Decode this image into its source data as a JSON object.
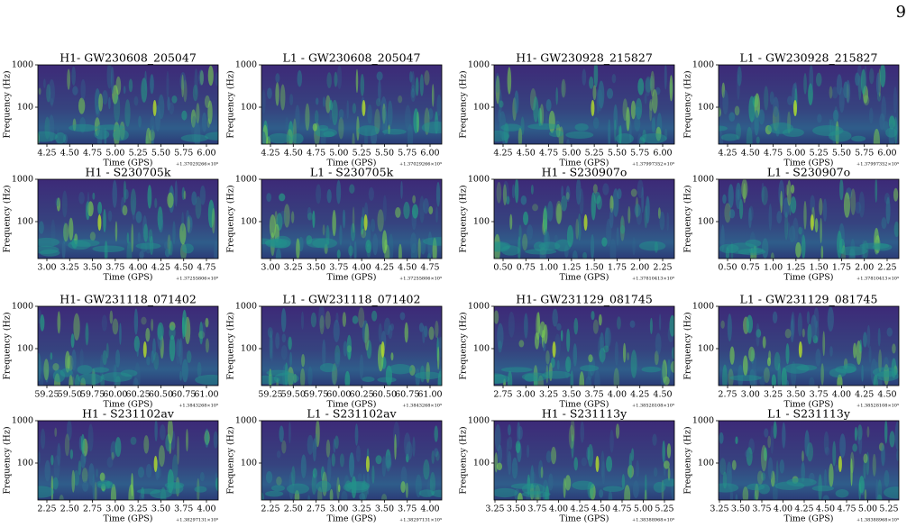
{
  "page_number": "9",
  "panels": [
    {
      "title": "H1- GW230608_205047",
      "ylabel": "Frequency (Hz)",
      "yticks": [
        "1000",
        "100"
      ],
      "xticks": [
        "4.25",
        "4.50",
        "4.75",
        "5.00",
        "5.25",
        "5.50",
        "5.75",
        "6.00"
      ],
      "xlabel": "Time (GPS)",
      "offset": "+1.37029266×10⁹"
    },
    {
      "title": "L1 - GW230608_205047",
      "ylabel": "Frequency (Hz)",
      "yticks": [
        "1000",
        "100"
      ],
      "xticks": [
        "4.25",
        "4.50",
        "4.75",
        "5.00",
        "5.25",
        "5.50",
        "5.75",
        "6.00"
      ],
      "xlabel": "Time (GPS)",
      "offset": "+1.37029266×10⁹"
    },
    {
      "title": "H1- GW230928_215827",
      "ylabel": "Frequency (Hz)",
      "yticks": [
        "1000",
        "100"
      ],
      "xticks": [
        "4.25",
        "4.50",
        "4.75",
        "5.00",
        "5.25",
        "5.50",
        "5.75",
        "6.00"
      ],
      "xlabel": "Time (GPS)",
      "offset": "+1.37997352×10⁹"
    },
    {
      "title": "L1 - GW230928_215827",
      "ylabel": "Frequency (Hz)",
      "yticks": [
        "1000",
        "100"
      ],
      "xticks": [
        "4.25",
        "4.50",
        "4.75",
        "5.00",
        "5.25",
        "5.50",
        "5.75",
        "6.00"
      ],
      "xlabel": "Time (GPS)",
      "offset": "+1.37997352×10⁹"
    },
    {
      "title": "H1 - S230705k",
      "ylabel": "Frequency (Hz)",
      "yticks": [
        "1000",
        "100"
      ],
      "xticks": [
        "3.00",
        "3.25",
        "3.50",
        "3.75",
        "4.00",
        "4.25",
        "4.50",
        "4.75"
      ],
      "xlabel": "Time (GPS)",
      "offset": "+1.37255806×10⁹"
    },
    {
      "title": "L1 - S230705k",
      "ylabel": "Frequency (Hz)",
      "yticks": [
        "1000",
        "100"
      ],
      "xticks": [
        "3.00",
        "3.25",
        "3.50",
        "3.75",
        "4.00",
        "4.25",
        "4.50",
        "4.75"
      ],
      "xlabel": "Time (GPS)",
      "offset": "+1.37255806×10⁹"
    },
    {
      "title": "H1 - S230907o",
      "ylabel": "Frequency (Hz)",
      "yticks": [
        "1000",
        "100"
      ],
      "xticks": [
        "0.50",
        "0.75",
        "1.00",
        "1.25",
        "1.50",
        "1.75",
        "2.00",
        "2.25"
      ],
      "xlabel": "Time (GPS)",
      "offset": "+1.37810413×10⁹"
    },
    {
      "title": "L1 - S230907o",
      "ylabel": "Frequency (Hz)",
      "yticks": [
        "1000",
        "100"
      ],
      "xticks": [
        "0.50",
        "0.75",
        "1.00",
        "1.25",
        "1.50",
        "1.75",
        "2.00",
        "2.25"
      ],
      "xlabel": "Time (GPS)",
      "offset": "+1.37810413×10⁹"
    },
    {
      "title": "H1- GW231118_071402",
      "ylabel": "Frequency (Hz)",
      "yticks": [
        "1000",
        "100"
      ],
      "xticks": [
        "59.25",
        "59.50",
        "59.75",
        "60.00",
        "60.25",
        "60.50",
        "60.75",
        "61.00"
      ],
      "xlabel": "Time (GPS)",
      "offset": "+1.3843268×10⁹"
    },
    {
      "title": "L1 - GW231118_071402",
      "ylabel": "Frequency (Hz)",
      "yticks": [
        "1000",
        "100"
      ],
      "xticks": [
        "59.25",
        "59.50",
        "59.75",
        "60.00",
        "60.25",
        "60.50",
        "60.75",
        "61.00"
      ],
      "xlabel": "Time (GPS)",
      "offset": "+1.3843268×10⁹"
    },
    {
      "title": "H1- GW231129_081745",
      "ylabel": "Frequency (Hz)",
      "yticks": [
        "1000",
        "100"
      ],
      "xticks": [
        "2.75",
        "3.00",
        "3.25",
        "3.50",
        "3.75",
        "4.00",
        "4.25",
        "4.50"
      ],
      "xlabel": "Time (GPS)",
      "offset": "+1.38528108×10⁹"
    },
    {
      "title": "L1 - GW231129_081745",
      "ylabel": "Frequency (Hz)",
      "yticks": [
        "1000",
        "100"
      ],
      "xticks": [
        "2.75",
        "3.00",
        "3.25",
        "3.50",
        "3.75",
        "4.00",
        "4.25",
        "4.50"
      ],
      "xlabel": "Time (GPS)",
      "offset": "+1.38528108×10⁹"
    },
    {
      "title": "H1 - S231102av",
      "ylabel": "Frequency (Hz)",
      "yticks": [
        "1000",
        "100"
      ],
      "xticks": [
        "2.25",
        "2.50",
        "2.75",
        "3.00",
        "3.25",
        "3.50",
        "3.75",
        "4.00"
      ],
      "xlabel": "Time (GPS)",
      "offset": "+1.38297131×10⁹"
    },
    {
      "title": "L1 - S231102av",
      "ylabel": "Frequency (Hz)",
      "yticks": [
        "1000",
        "100"
      ],
      "xticks": [
        "2.25",
        "2.50",
        "2.75",
        "3.00",
        "3.25",
        "3.50",
        "3.75",
        "4.00"
      ],
      "xlabel": "Time (GPS)",
      "offset": "+1.38297131×10⁹"
    },
    {
      "title": "H1 - S231113y",
      "ylabel": "Frequency (Hz)",
      "yticks": [
        "1000",
        "100"
      ],
      "xticks": [
        "3.25",
        "3.50",
        "3.75",
        "4.00",
        "4.25",
        "4.50",
        "4.75",
        "5.00",
        "5.25"
      ],
      "xlabel": "Time (GPS)",
      "offset": "+1.38388968×10⁹"
    },
    {
      "title": "L1 - S231113y",
      "ylabel": "Frequency (Hz)",
      "yticks": [
        "1000",
        "100"
      ],
      "xticks": [
        "3.25",
        "3.50",
        "3.75",
        "4.00",
        "4.25",
        "4.50",
        "4.75",
        "5.00",
        "5.25"
      ],
      "xlabel": "Time (GPS)",
      "offset": "+1.38388968×10⁹"
    }
  ]
}
